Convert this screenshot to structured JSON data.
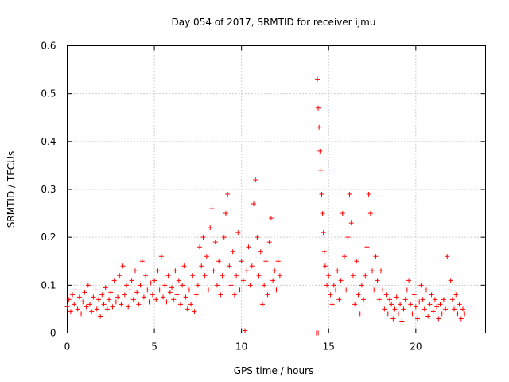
{
  "chart_data": {
    "type": "scatter",
    "title": "Day 054 of 2017, SRMTID for receiver ijmu",
    "xlabel": "GPS time / hours",
    "ylabel": "SRMTID / TECUs",
    "xlim": [
      0,
      24
    ],
    "ylim": [
      0,
      0.6
    ],
    "xticks": [
      0,
      5,
      10,
      15,
      20
    ],
    "xtick_labels": [
      "0",
      "5",
      "10",
      "15",
      "20"
    ],
    "yticks": [
      0,
      0.1,
      0.2,
      0.3,
      0.4,
      0.5,
      0.6
    ],
    "ytick_labels": [
      "0",
      "0.1",
      "0.2",
      "0.3",
      "0.4",
      "0.5",
      "0.6"
    ],
    "grid": true,
    "marker": "+",
    "series": [
      {
        "name": "SRMTID",
        "color": "#ff0000",
        "points": [
          [
            0.0,
            0.055
          ],
          [
            0.1,
            0.07
          ],
          [
            0.2,
            0.045
          ],
          [
            0.3,
            0.08
          ],
          [
            0.4,
            0.06
          ],
          [
            0.5,
            0.09
          ],
          [
            0.6,
            0.05
          ],
          [
            0.7,
            0.075
          ],
          [
            0.8,
            0.04
          ],
          [
            0.9,
            0.065
          ],
          [
            1.0,
            0.085
          ],
          [
            1.1,
            0.055
          ],
          [
            1.2,
            0.1
          ],
          [
            1.3,
            0.06
          ],
          [
            1.4,
            0.045
          ],
          [
            1.5,
            0.075
          ],
          [
            1.6,
            0.09
          ],
          [
            1.7,
            0.05
          ],
          [
            1.8,
            0.07
          ],
          [
            1.9,
            0.035
          ],
          [
            2.0,
            0.08
          ],
          [
            2.1,
            0.06
          ],
          [
            2.2,
            0.095
          ],
          [
            2.3,
            0.05
          ],
          [
            2.4,
            0.07
          ],
          [
            2.5,
            0.085
          ],
          [
            2.6,
            0.055
          ],
          [
            2.7,
            0.11
          ],
          [
            2.8,
            0.065
          ],
          [
            2.9,
            0.075
          ],
          [
            3.0,
            0.12
          ],
          [
            3.1,
            0.06
          ],
          [
            3.2,
            0.14
          ],
          [
            3.3,
            0.08
          ],
          [
            3.4,
            0.1
          ],
          [
            3.5,
            0.055
          ],
          [
            3.6,
            0.09
          ],
          [
            3.7,
            0.11
          ],
          [
            3.8,
            0.07
          ],
          [
            3.9,
            0.13
          ],
          [
            4.0,
            0.085
          ],
          [
            4.1,
            0.06
          ],
          [
            4.2,
            0.1
          ],
          [
            4.3,
            0.15
          ],
          [
            4.4,
            0.075
          ],
          [
            4.5,
            0.12
          ],
          [
            4.6,
            0.09
          ],
          [
            4.7,
            0.065
          ],
          [
            4.8,
            0.105
          ],
          [
            4.9,
            0.08
          ],
          [
            5.0,
            0.11
          ],
          [
            5.1,
            0.07
          ],
          [
            5.2,
            0.13
          ],
          [
            5.3,
            0.09
          ],
          [
            5.4,
            0.16
          ],
          [
            5.5,
            0.075
          ],
          [
            5.6,
            0.1
          ],
          [
            5.7,
            0.065
          ],
          [
            5.8,
            0.12
          ],
          [
            5.9,
            0.085
          ],
          [
            6.0,
            0.095
          ],
          [
            6.1,
            0.07
          ],
          [
            6.2,
            0.13
          ],
          [
            6.3,
            0.08
          ],
          [
            6.4,
            0.11
          ],
          [
            6.5,
            0.06
          ],
          [
            6.6,
            0.1
          ],
          [
            6.7,
            0.14
          ],
          [
            6.8,
            0.075
          ],
          [
            6.9,
            0.05
          ],
          [
            7.0,
            0.09
          ],
          [
            7.1,
            0.06
          ],
          [
            7.2,
            0.12
          ],
          [
            7.3,
            0.045
          ],
          [
            7.4,
            0.08
          ],
          [
            7.5,
            0.1
          ],
          [
            7.6,
            0.18
          ],
          [
            7.7,
            0.14
          ],
          [
            7.8,
            0.2
          ],
          [
            7.9,
            0.12
          ],
          [
            8.0,
            0.16
          ],
          [
            8.1,
            0.09
          ],
          [
            8.2,
            0.22
          ],
          [
            8.3,
            0.26
          ],
          [
            8.4,
            0.13
          ],
          [
            8.5,
            0.19
          ],
          [
            8.6,
            0.1
          ],
          [
            8.7,
            0.15
          ],
          [
            8.8,
            0.08
          ],
          [
            8.9,
            0.12
          ],
          [
            9.0,
            0.2
          ],
          [
            9.1,
            0.25
          ],
          [
            9.2,
            0.29
          ],
          [
            9.3,
            0.14
          ],
          [
            9.4,
            0.1
          ],
          [
            9.5,
            0.17
          ],
          [
            9.6,
            0.08
          ],
          [
            9.7,
            0.12
          ],
          [
            9.8,
            0.21
          ],
          [
            9.9,
            0.09
          ],
          [
            10.0,
            0.15
          ],
          [
            10.1,
            0.11
          ],
          [
            10.2,
            0.005
          ],
          [
            10.3,
            0.13
          ],
          [
            10.4,
            0.18
          ],
          [
            10.5,
            0.1
          ],
          [
            10.6,
            0.14
          ],
          [
            10.7,
            0.27
          ],
          [
            10.8,
            0.32
          ],
          [
            10.9,
            0.2
          ],
          [
            11.0,
            0.12
          ],
          [
            11.1,
            0.17
          ],
          [
            11.2,
            0.06
          ],
          [
            11.3,
            0.1
          ],
          [
            11.4,
            0.15
          ],
          [
            11.5,
            0.08
          ],
          [
            11.6,
            0.19
          ],
          [
            11.7,
            0.24
          ],
          [
            11.8,
            0.11
          ],
          [
            11.9,
            0.13
          ],
          [
            12.0,
            0.09
          ],
          [
            12.1,
            0.15
          ],
          [
            12.2,
            0.12
          ],
          [
            14.3,
            0.0
          ],
          [
            14.4,
            0.0
          ],
          [
            14.35,
            0.53
          ],
          [
            14.4,
            0.47
          ],
          [
            14.45,
            0.43
          ],
          [
            14.5,
            0.38
          ],
          [
            14.55,
            0.34
          ],
          [
            14.6,
            0.29
          ],
          [
            14.65,
            0.25
          ],
          [
            14.7,
            0.21
          ],
          [
            14.75,
            0.17
          ],
          [
            14.8,
            0.14
          ],
          [
            14.9,
            0.1
          ],
          [
            15.0,
            0.12
          ],
          [
            15.1,
            0.08
          ],
          [
            15.2,
            0.06
          ],
          [
            15.3,
            0.1
          ],
          [
            15.4,
            0.09
          ],
          [
            15.5,
            0.13
          ],
          [
            15.6,
            0.07
          ],
          [
            15.7,
            0.11
          ],
          [
            15.8,
            0.25
          ],
          [
            15.9,
            0.16
          ],
          [
            16.0,
            0.09
          ],
          [
            16.1,
            0.2
          ],
          [
            16.2,
            0.29
          ],
          [
            16.3,
            0.23
          ],
          [
            16.4,
            0.12
          ],
          [
            16.5,
            0.06
          ],
          [
            16.6,
            0.15
          ],
          [
            16.7,
            0.08
          ],
          [
            16.8,
            0.04
          ],
          [
            16.9,
            0.1
          ],
          [
            17.0,
            0.07
          ],
          [
            17.1,
            0.12
          ],
          [
            17.2,
            0.18
          ],
          [
            17.3,
            0.29
          ],
          [
            17.4,
            0.25
          ],
          [
            17.5,
            0.13
          ],
          [
            17.6,
            0.09
          ],
          [
            17.7,
            0.16
          ],
          [
            17.8,
            0.11
          ],
          [
            17.9,
            0.07
          ],
          [
            18.0,
            0.13
          ],
          [
            18.1,
            0.09
          ],
          [
            18.2,
            0.05
          ],
          [
            18.3,
            0.08
          ],
          [
            18.4,
            0.04
          ],
          [
            18.5,
            0.07
          ],
          [
            18.6,
            0.06
          ],
          [
            18.7,
            0.03
          ],
          [
            18.8,
            0.05
          ],
          [
            18.9,
            0.075
          ],
          [
            19.0,
            0.04
          ],
          [
            19.1,
            0.06
          ],
          [
            19.2,
            0.025
          ],
          [
            19.3,
            0.05
          ],
          [
            19.4,
            0.07
          ],
          [
            19.5,
            0.09
          ],
          [
            19.6,
            0.11
          ],
          [
            19.7,
            0.06
          ],
          [
            19.8,
            0.04
          ],
          [
            19.9,
            0.08
          ],
          [
            20.0,
            0.055
          ],
          [
            20.1,
            0.03
          ],
          [
            20.2,
            0.065
          ],
          [
            20.3,
            0.1
          ],
          [
            20.4,
            0.07
          ],
          [
            20.5,
            0.05
          ],
          [
            20.6,
            0.09
          ],
          [
            20.7,
            0.035
          ],
          [
            20.8,
            0.06
          ],
          [
            20.9,
            0.08
          ],
          [
            21.0,
            0.045
          ],
          [
            21.1,
            0.07
          ],
          [
            21.2,
            0.055
          ],
          [
            21.3,
            0.03
          ],
          [
            21.4,
            0.06
          ],
          [
            21.5,
            0.04
          ],
          [
            21.6,
            0.07
          ],
          [
            21.7,
            0.05
          ],
          [
            21.8,
            0.16
          ],
          [
            21.9,
            0.09
          ],
          [
            22.0,
            0.11
          ],
          [
            22.1,
            0.07
          ],
          [
            22.2,
            0.05
          ],
          [
            22.3,
            0.08
          ],
          [
            22.4,
            0.04
          ],
          [
            22.5,
            0.06
          ],
          [
            22.6,
            0.03
          ],
          [
            22.7,
            0.05
          ],
          [
            22.8,
            0.04
          ]
        ]
      }
    ]
  }
}
